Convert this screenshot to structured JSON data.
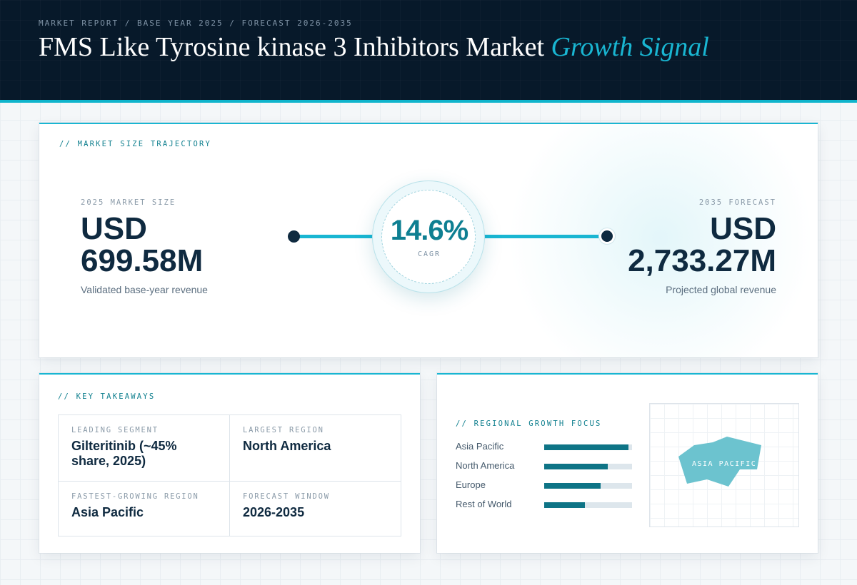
{
  "header": {
    "breadcrumb": "MARKET REPORT / BASE YEAR 2025 / FORECAST 2026-2035",
    "title": "FMS Like Tyrosine kinase 3 Inhibitors Market",
    "title_accent": "Growth Signal"
  },
  "trajectory": {
    "section_label": "// MARKET SIZE TRAJECTORY",
    "base": {
      "label": "2025 MARKET SIZE",
      "currency": "USD",
      "value": "699.58M",
      "note": "Validated base-year revenue"
    },
    "forecast": {
      "label": "2035 FORECAST",
      "currency": "USD",
      "value": "2,733.27M",
      "note": "Projected global revenue"
    },
    "cagr": {
      "value": "14.6%",
      "label": "CAGR"
    }
  },
  "takeaways": {
    "section_label": "// KEY TAKEAWAYS",
    "cells": [
      {
        "label": "LEADING SEGMENT",
        "value": "Gilteritinib (~45% share, 2025)"
      },
      {
        "label": "LARGEST REGION",
        "value": "North America"
      },
      {
        "label": "FASTEST-GROWING REGION",
        "value": "Asia Pacific"
      },
      {
        "label": "FORECAST WINDOW",
        "value": "2026-2035"
      }
    ]
  },
  "regional": {
    "section_label": "// REGIONAL GROWTH FOCUS",
    "regions": [
      {
        "name": "Asia Pacific",
        "level": 0.96
      },
      {
        "name": "North America",
        "level": 0.72
      },
      {
        "name": "Europe",
        "level": 0.64
      },
      {
        "name": "Rest of World",
        "level": 0.46
      }
    ],
    "map_label": "ASIA PACIFIC"
  },
  "colors": {
    "header_bg": "#07192a",
    "accent": "#19b6d2",
    "bar_fill": "#0e7486",
    "text_dark": "#0f2a40",
    "map_shape": "#6cc3cf"
  }
}
